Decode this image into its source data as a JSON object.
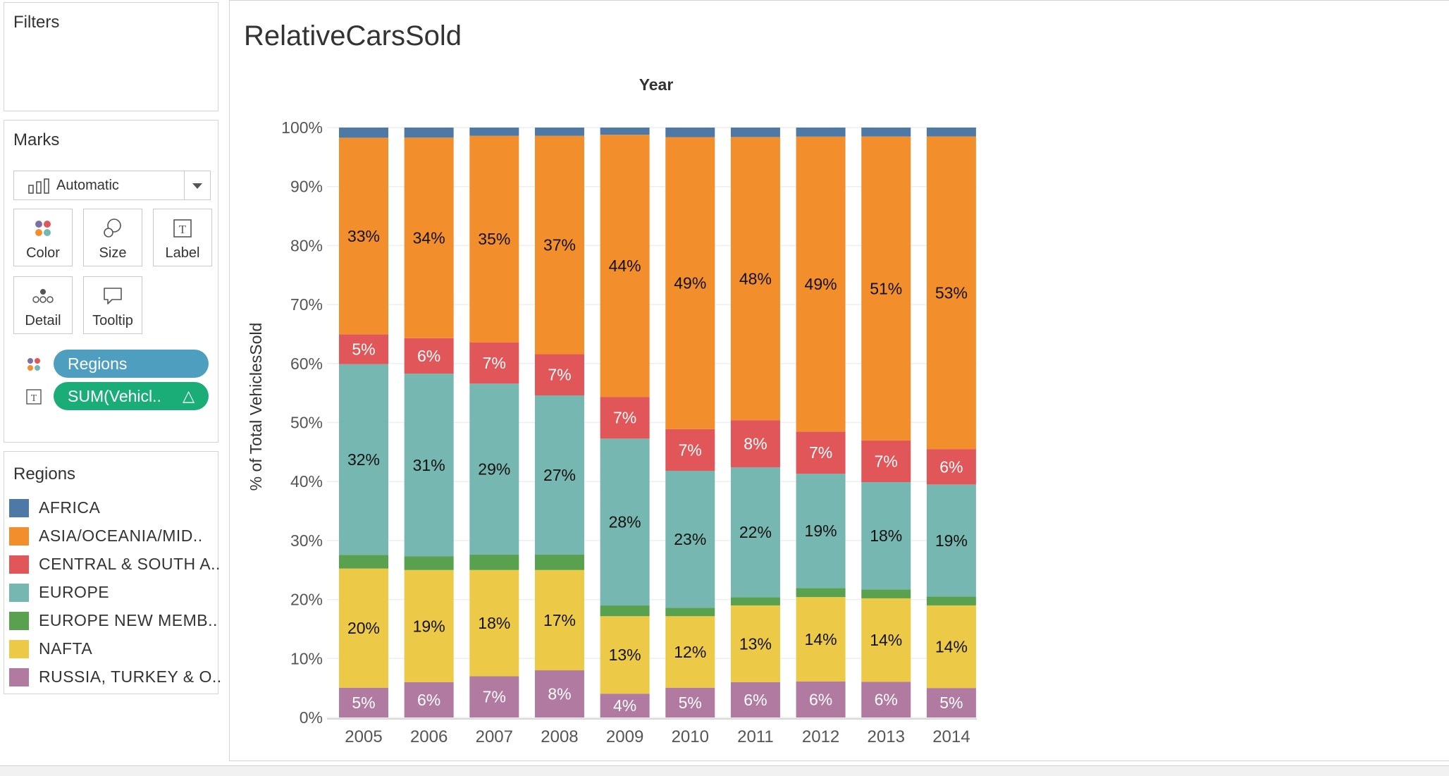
{
  "filters": {
    "title": "Filters"
  },
  "marks": {
    "title": "Marks",
    "mark_type": "Automatic",
    "cards": [
      {
        "label": "Color",
        "icon": "color-icon"
      },
      {
        "label": "Size",
        "icon": "size-icon"
      },
      {
        "label": "Label",
        "icon": "label-icon"
      },
      {
        "label": "Detail",
        "icon": "detail-icon"
      },
      {
        "label": "Tooltip",
        "icon": "tooltip-icon"
      }
    ],
    "pills": [
      {
        "text": "Regions",
        "color": "#4e9fbf",
        "icon": "color-icon"
      },
      {
        "text": "SUM(Vehicl..",
        "delta": "△",
        "color": "#1aad78",
        "icon": "label-icon"
      }
    ]
  },
  "legend": {
    "title": "Regions",
    "items": [
      {
        "label": "AFRICA",
        "color": "#4e79a7"
      },
      {
        "label": "ASIA/OCEANIA/MID..",
        "color": "#f28e2b"
      },
      {
        "label": "CENTRAL & SOUTH A..",
        "color": "#e15759"
      },
      {
        "label": "EUROPE",
        "color": "#76b7b2"
      },
      {
        "label": "EUROPE NEW MEMB..",
        "color": "#59a14f"
      },
      {
        "label": "NAFTA",
        "color": "#edc948"
      },
      {
        "label": "RUSSIA, TURKEY & O..",
        "color": "#b07aa1"
      }
    ]
  },
  "sheet": {
    "title": "RelativeCarsSold"
  },
  "chart_data": {
    "type": "bar",
    "stacked": true,
    "title": "Year",
    "xlabel": "",
    "ylabel": "% of Total VehiclesSold",
    "ylim": [
      0,
      100
    ],
    "yticks": [
      "0%",
      "10%",
      "20%",
      "30%",
      "40%",
      "50%",
      "60%",
      "70%",
      "80%",
      "90%",
      "100%"
    ],
    "categories": [
      "2005",
      "2006",
      "2007",
      "2008",
      "2009",
      "2010",
      "2011",
      "2012",
      "2013",
      "2014"
    ],
    "series": [
      {
        "name": "RUSSIA, TURKEY & O..",
        "color": "#b07aa1",
        "values": [
          5,
          6,
          7,
          8,
          4,
          5,
          6,
          6,
          6,
          5
        ],
        "labels": [
          "5%",
          "6%",
          "7%",
          "8%",
          "4%",
          "5%",
          "6%",
          "6%",
          "6%",
          "5%"
        ],
        "label_color": "#ffffff"
      },
      {
        "name": "NAFTA",
        "color": "#edc948",
        "values": [
          20,
          19,
          18,
          17,
          13,
          12,
          13,
          14,
          14,
          14
        ],
        "labels": [
          "20%",
          "19%",
          "18%",
          "17%",
          "13%",
          "12%",
          "13%",
          "14%",
          "14%",
          "14%"
        ],
        "label_color": "#111111"
      },
      {
        "name": "EUROPE NEW MEMB..",
        "color": "#59a14f",
        "values": [
          2.3,
          2.3,
          2.6,
          2.6,
          1.8,
          1.4,
          1.4,
          1.5,
          1.5,
          1.5
        ],
        "labels": [],
        "label_color": "#111111"
      },
      {
        "name": "EUROPE",
        "color": "#76b7b2",
        "values": [
          32,
          31,
          29,
          27,
          28,
          23,
          22,
          19,
          18,
          19
        ],
        "labels": [
          "32%",
          "31%",
          "29%",
          "27%",
          "28%",
          "23%",
          "22%",
          "19%",
          "18%",
          "19%"
        ],
        "label_color": "#111111"
      },
      {
        "name": "CENTRAL & SOUTH A..",
        "color": "#e15759",
        "values": [
          5,
          6,
          7,
          7,
          7,
          7,
          8,
          7,
          7,
          6
        ],
        "labels": [
          "5%",
          "6%",
          "7%",
          "7%",
          "7%",
          "7%",
          "8%",
          "7%",
          "7%",
          "6%"
        ],
        "label_color": "#ffffff"
      },
      {
        "name": "ASIA/OCEANIA/MID..",
        "color": "#f28e2b",
        "values": [
          33,
          34,
          35,
          37,
          44,
          49,
          48,
          49,
          51,
          53
        ],
        "labels": [
          "33%",
          "34%",
          "35%",
          "37%",
          "44%",
          "49%",
          "48%",
          "49%",
          "51%",
          "53%"
        ],
        "label_color": "#111111"
      },
      {
        "name": "AFRICA",
        "color": "#4e79a7",
        "values": [
          1.7,
          1.7,
          1.4,
          1.4,
          1.2,
          1.6,
          1.6,
          1.5,
          1.5,
          1.5
        ],
        "labels": [],
        "label_color": "#111111"
      }
    ]
  }
}
